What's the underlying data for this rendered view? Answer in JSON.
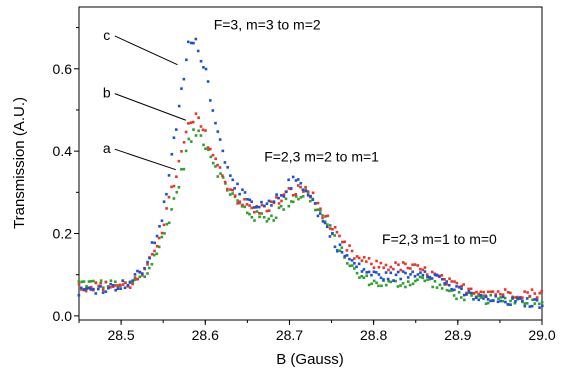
{
  "chart_data": {
    "type": "scatter",
    "title": "",
    "xlabel": "B (Gauss)",
    "ylabel": "Transmission (A.U.)",
    "xlim": [
      28.45,
      29.0
    ],
    "ylim": [
      -0.01,
      0.75
    ],
    "xticks": [
      28.5,
      28.6,
      28.7,
      28.8,
      28.9,
      29.0
    ],
    "xtick_labels": [
      "28.5",
      "28.6",
      "28.7",
      "28.8",
      "28.9",
      "29.0"
    ],
    "yticks": [
      0.0,
      0.2,
      0.4,
      0.6
    ],
    "ytick_labels": [
      "0.0",
      "0.2",
      "0.4",
      "0.6"
    ],
    "grid": false,
    "series": [
      {
        "color": "#2ca02c",
        "points": [
          [
            28.45,
            0.08
          ],
          [
            28.47,
            0.078
          ],
          [
            28.49,
            0.076
          ],
          [
            28.51,
            0.075
          ],
          [
            28.53,
            0.1
          ],
          [
            28.55,
            0.19
          ],
          [
            28.57,
            0.33
          ],
          [
            28.58,
            0.42
          ],
          [
            28.59,
            0.45
          ],
          [
            28.6,
            0.42
          ],
          [
            28.62,
            0.33
          ],
          [
            28.64,
            0.27
          ],
          [
            28.66,
            0.24
          ],
          [
            28.68,
            0.24
          ],
          [
            28.7,
            0.28
          ],
          [
            28.72,
            0.3
          ],
          [
            28.74,
            0.24
          ],
          [
            28.76,
            0.16
          ],
          [
            28.78,
            0.1
          ],
          [
            28.8,
            0.08
          ],
          [
            28.82,
            0.078
          ],
          [
            28.84,
            0.08
          ],
          [
            28.86,
            0.09
          ],
          [
            28.88,
            0.07
          ],
          [
            28.9,
            0.05
          ],
          [
            28.93,
            0.04
          ],
          [
            28.96,
            0.038
          ],
          [
            29.0,
            0.04
          ]
        ]
      },
      {
        "color": "#e8352a",
        "points": [
          [
            28.45,
            0.07
          ],
          [
            28.47,
            0.072
          ],
          [
            28.49,
            0.074
          ],
          [
            28.51,
            0.075
          ],
          [
            28.53,
            0.11
          ],
          [
            28.55,
            0.22
          ],
          [
            28.57,
            0.38
          ],
          [
            28.58,
            0.46
          ],
          [
            28.59,
            0.48
          ],
          [
            28.6,
            0.44
          ],
          [
            28.62,
            0.34
          ],
          [
            28.64,
            0.28
          ],
          [
            28.66,
            0.255
          ],
          [
            28.68,
            0.27
          ],
          [
            28.7,
            0.3
          ],
          [
            28.72,
            0.31
          ],
          [
            28.74,
            0.25
          ],
          [
            28.76,
            0.18
          ],
          [
            28.78,
            0.14
          ],
          [
            28.8,
            0.125
          ],
          [
            28.82,
            0.12
          ],
          [
            28.84,
            0.12
          ],
          [
            28.86,
            0.11
          ],
          [
            28.88,
            0.09
          ],
          [
            28.9,
            0.07
          ],
          [
            28.93,
            0.06
          ],
          [
            28.96,
            0.055
          ],
          [
            29.0,
            0.055
          ]
        ]
      },
      {
        "color": "#1f4fd1",
        "points": [
          [
            28.45,
            0.06
          ],
          [
            28.47,
            0.065
          ],
          [
            28.49,
            0.07
          ],
          [
            28.51,
            0.08
          ],
          [
            28.53,
            0.12
          ],
          [
            28.55,
            0.25
          ],
          [
            28.56,
            0.38
          ],
          [
            28.57,
            0.52
          ],
          [
            28.58,
            0.66
          ],
          [
            28.59,
            0.66
          ],
          [
            28.6,
            0.6
          ],
          [
            28.61,
            0.5
          ],
          [
            28.62,
            0.4
          ],
          [
            28.64,
            0.3
          ],
          [
            28.66,
            0.26
          ],
          [
            28.68,
            0.27
          ],
          [
            28.7,
            0.32
          ],
          [
            28.71,
            0.33
          ],
          [
            28.72,
            0.31
          ],
          [
            28.74,
            0.23
          ],
          [
            28.76,
            0.16
          ],
          [
            28.78,
            0.12
          ],
          [
            28.8,
            0.1
          ],
          [
            28.82,
            0.095
          ],
          [
            28.84,
            0.1
          ],
          [
            28.86,
            0.11
          ],
          [
            28.88,
            0.09
          ],
          [
            28.9,
            0.06
          ],
          [
            28.93,
            0.04
          ],
          [
            28.96,
            0.035
          ],
          [
            29.0,
            0.03
          ]
        ]
      }
    ],
    "annotations": [
      {
        "text": "F=3, m=3 to m=2",
        "x": 28.61,
        "y": 0.695
      },
      {
        "text": "F=2,3 m=2 to m=1",
        "x": 28.67,
        "y": 0.375
      },
      {
        "text": "F=2,3 m=1 to m=0",
        "x": 28.81,
        "y": 0.175
      }
    ],
    "curve_labels": [
      {
        "text": "c",
        "x": 28.483,
        "y": 0.67,
        "line_to": [
          28.567,
          0.61
        ]
      },
      {
        "text": "b",
        "x": 28.483,
        "y": 0.53,
        "line_to": [
          28.577,
          0.475
        ]
      },
      {
        "text": "a",
        "x": 28.483,
        "y": 0.395,
        "line_to": [
          28.565,
          0.355
        ]
      }
    ]
  }
}
